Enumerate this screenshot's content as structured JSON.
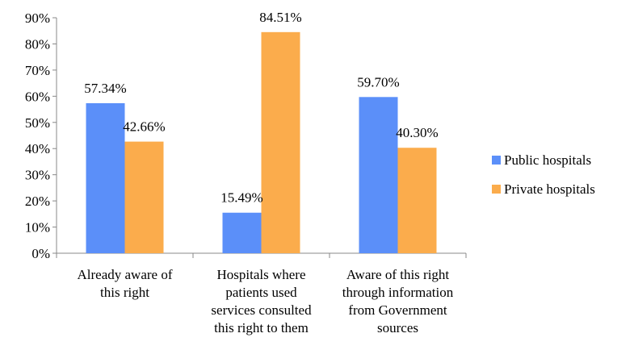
{
  "chart_data": {
    "type": "bar",
    "categories": [
      [
        "Already aware of",
        "this right"
      ],
      [
        "Hospitals where",
        "patients used",
        "services consulted",
        "this right to them"
      ],
      [
        "Aware of this right",
        "through information",
        "from Government",
        "sources"
      ]
    ],
    "series": [
      {
        "name": "Public hospitals",
        "color": "#5b8ff9",
        "values": [
          57.34,
          15.49,
          59.7
        ],
        "labels": [
          "57.34%",
          "15.49%",
          "59.70%"
        ]
      },
      {
        "name": "Private hospitals",
        "color": "#fbac4c",
        "values": [
          42.66,
          84.51,
          40.3
        ],
        "labels": [
          "42.66%",
          "84.51%",
          "40.30%"
        ]
      }
    ],
    "y_ticks": [
      "0%",
      "10%",
      "20%",
      "30%",
      "40%",
      "50%",
      "60%",
      "70%",
      "80%",
      "90%"
    ],
    "ylim": [
      0,
      90
    ],
    "grid": false,
    "legend_position": "right"
  }
}
